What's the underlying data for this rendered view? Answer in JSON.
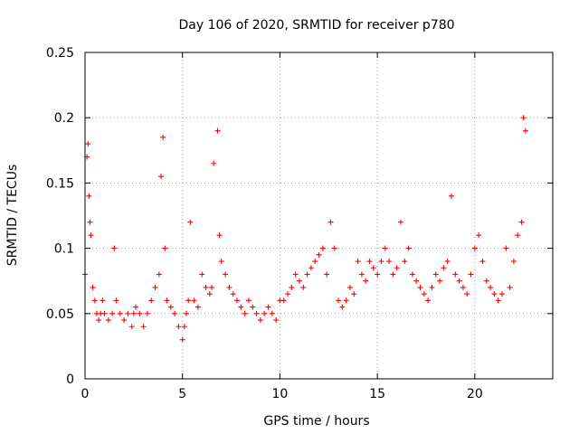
{
  "chart_data": {
    "type": "scatter",
    "title": "Day 106 of 2020, SRMTID for receiver p780",
    "xlabel": "GPS time / hours",
    "ylabel": "SRMTID / TECUs",
    "xlim": [
      0,
      24
    ],
    "ylim": [
      0,
      0.25
    ],
    "grid": true,
    "x_ticks": [
      0,
      5,
      10,
      15,
      20
    ],
    "x_tick_labels": [
      "0",
      "5",
      "10",
      "15",
      "20"
    ],
    "y_ticks": [
      0,
      0.05,
      0.1,
      0.15,
      0.2,
      0.25
    ],
    "y_tick_labels": [
      "0",
      "0.05",
      "0.1",
      "0.15",
      "0.2",
      "0.25"
    ],
    "marker": "plus",
    "color": "#ff0000",
    "series": [
      {
        "name": "SRMTID",
        "x": [
          0.0,
          0.1,
          0.15,
          0.2,
          0.25,
          0.3,
          0.4,
          0.5,
          0.6,
          0.7,
          0.8,
          0.9,
          1.0,
          1.2,
          1.4,
          1.5,
          1.6,
          1.8,
          2.0,
          2.2,
          2.4,
          2.5,
          2.6,
          2.8,
          3.0,
          3.2,
          3.4,
          3.6,
          3.8,
          3.9,
          4.0,
          4.1,
          4.2,
          4.4,
          4.6,
          4.8,
          5.0,
          5.1,
          5.2,
          5.3,
          5.4,
          5.6,
          5.8,
          6.0,
          6.2,
          6.4,
          6.5,
          6.6,
          6.8,
          6.9,
          7.0,
          7.2,
          7.4,
          7.6,
          7.8,
          8.0,
          8.2,
          8.4,
          8.6,
          8.8,
          9.0,
          9.2,
          9.4,
          9.6,
          9.8,
          10.0,
          10.2,
          10.4,
          10.6,
          10.8,
          11.0,
          11.2,
          11.4,
          11.6,
          11.8,
          12.0,
          12.2,
          12.4,
          12.6,
          12.8,
          13.0,
          13.2,
          13.4,
          13.6,
          13.8,
          14.0,
          14.2,
          14.4,
          14.6,
          14.8,
          15.0,
          15.2,
          15.4,
          15.6,
          15.8,
          16.0,
          16.2,
          16.4,
          16.6,
          16.8,
          17.0,
          17.2,
          17.4,
          17.6,
          17.8,
          18.0,
          18.2,
          18.4,
          18.6,
          18.8,
          19.0,
          19.2,
          19.4,
          19.6,
          19.8,
          20.0,
          20.2,
          20.4,
          20.6,
          20.8,
          21.0,
          21.2,
          21.4,
          21.6,
          21.8,
          22.0,
          22.2,
          22.4,
          22.5,
          22.6
        ],
        "y": [
          0.08,
          0.17,
          0.18,
          0.14,
          0.12,
          0.11,
          0.07,
          0.06,
          0.05,
          0.045,
          0.05,
          0.06,
          0.05,
          0.045,
          0.05,
          0.1,
          0.06,
          0.05,
          0.045,
          0.05,
          0.04,
          0.05,
          0.055,
          0.05,
          0.04,
          0.05,
          0.06,
          0.07,
          0.08,
          0.155,
          0.185,
          0.1,
          0.06,
          0.055,
          0.05,
          0.04,
          0.03,
          0.04,
          0.05,
          0.06,
          0.12,
          0.06,
          0.055,
          0.08,
          0.07,
          0.065,
          0.07,
          0.165,
          0.19,
          0.11,
          0.09,
          0.08,
          0.07,
          0.065,
          0.06,
          0.055,
          0.05,
          0.06,
          0.055,
          0.05,
          0.045,
          0.05,
          0.055,
          0.05,
          0.045,
          0.06,
          0.06,
          0.065,
          0.07,
          0.08,
          0.075,
          0.07,
          0.08,
          0.085,
          0.09,
          0.095,
          0.1,
          0.08,
          0.12,
          0.1,
          0.06,
          0.055,
          0.06,
          0.07,
          0.065,
          0.09,
          0.08,
          0.075,
          0.09,
          0.085,
          0.08,
          0.09,
          0.1,
          0.09,
          0.08,
          0.085,
          0.12,
          0.09,
          0.1,
          0.08,
          0.075,
          0.07,
          0.065,
          0.06,
          0.07,
          0.08,
          0.075,
          0.085,
          0.09,
          0.14,
          0.08,
          0.075,
          0.07,
          0.065,
          0.08,
          0.1,
          0.11,
          0.09,
          0.075,
          0.07,
          0.065,
          0.06,
          0.065,
          0.1,
          0.07,
          0.09,
          0.11,
          0.12,
          0.2,
          0.19
        ]
      }
    ]
  }
}
